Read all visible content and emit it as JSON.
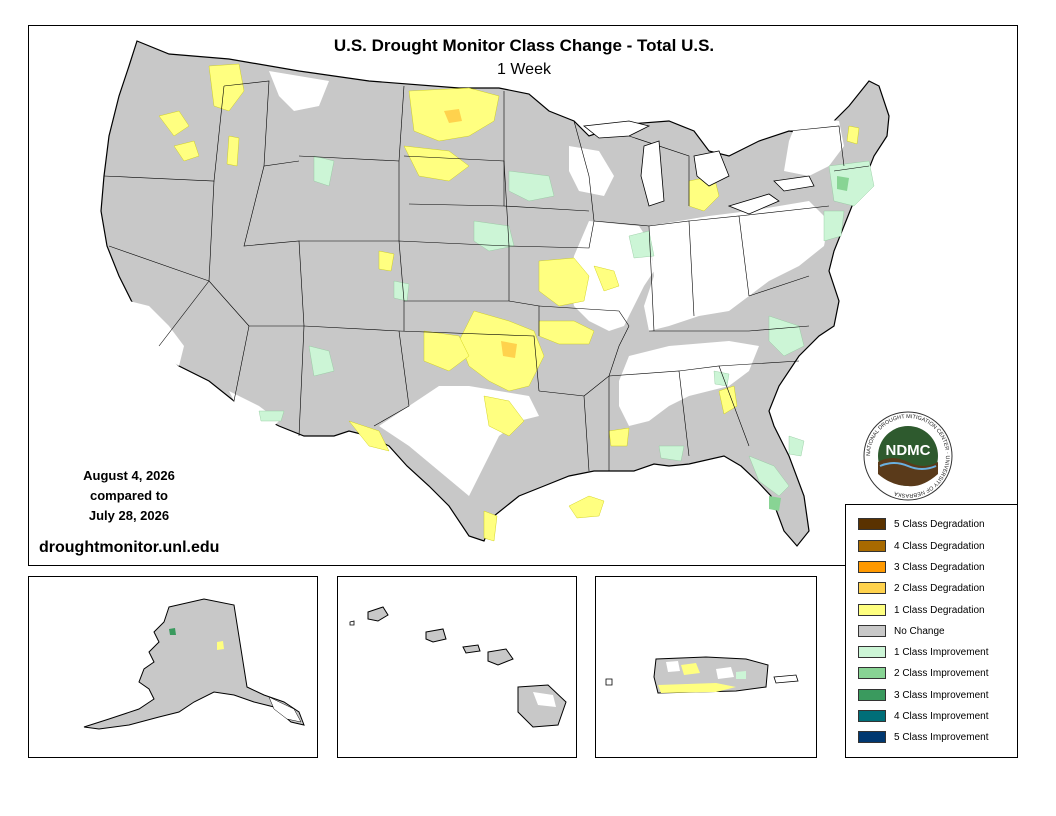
{
  "map": {
    "title": "U.S. Drought Monitor Class Change - Total U.S.",
    "subtitle": "1 Week",
    "date_current": "August 4, 2026",
    "date_compared_label": "compared to",
    "date_previous": "July 28, 2026",
    "website": "droughtmonitor.unl.edu"
  },
  "logo": {
    "text": "NDMC",
    "ring_text": "NATIONAL DROUGHT MITIGATION CENTER · UNIVERSITY OF NEBRASKA"
  },
  "legend": {
    "items": [
      {
        "label": "5 Class Degradation",
        "color": "#5a3200"
      },
      {
        "label": "4 Class Degradation",
        "color": "#a86a00"
      },
      {
        "label": "3 Class Degradation",
        "color": "#ff9900"
      },
      {
        "label": "2 Class Degradation",
        "color": "#ffd24d"
      },
      {
        "label": "1 Class Degradation",
        "color": "#ffff80"
      },
      {
        "label": "No Change",
        "color": "#c8c8c8"
      },
      {
        "label": "1 Class Improvement",
        "color": "#ccf5d6"
      },
      {
        "label": "2 Class Improvement",
        "color": "#88d494"
      },
      {
        "label": "3 Class Improvement",
        "color": "#3a9a5e"
      },
      {
        "label": "4 Class Improvement",
        "color": "#006e78"
      },
      {
        "label": "5 Class Improvement",
        "color": "#003870"
      }
    ]
  }
}
